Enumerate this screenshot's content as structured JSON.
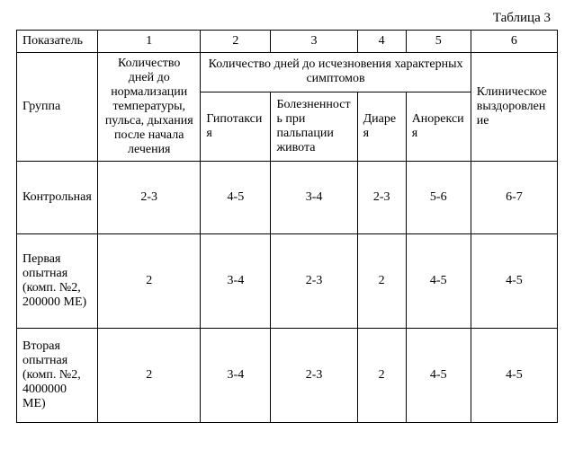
{
  "caption": "Таблица 3",
  "header": {
    "row1": {
      "c0": "Показатель",
      "c1": "1",
      "c2": "2",
      "c3": "3",
      "c4": "4",
      "c5": "5",
      "c6": "6"
    },
    "row2": {
      "group_label": "Группа",
      "col1_desc": "Количество дней до нормализации температуры, пульса, дыхания после начала лечения",
      "merged_desc": "Количество дней до исчезновения характерных симптомов",
      "col6_desc": "Клиническое выздоровление"
    },
    "row3": {
      "c2": "Гипотаксия",
      "c3": "Болезненность при пальпации живота",
      "c4": "Диарея",
      "c5": "Анорексия"
    }
  },
  "rows": [
    {
      "label": "Контрольная",
      "c1": "2-3",
      "c2": "4-5",
      "c3": "3-4",
      "c4": "2-3",
      "c5": "5-6",
      "c6": "6-7"
    },
    {
      "label": "Первая опытная (комп. №2, 200000 МЕ)",
      "c1": "2",
      "c2": "3-4",
      "c3": "2-3",
      "c4": "2",
      "c5": "4-5",
      "c6": "4-5"
    },
    {
      "label": "Вторая опытная (комп. №2, 4000000 МЕ)",
      "c1": "2",
      "c2": "3-4",
      "c3": "2-3",
      "c4": "2",
      "c5": "4-5",
      "c6": "4-5"
    }
  ],
  "style": {
    "font_family": "Times New Roman",
    "font_size_pt": 11,
    "border_color": "#000000",
    "background_color": "#ffffff"
  }
}
